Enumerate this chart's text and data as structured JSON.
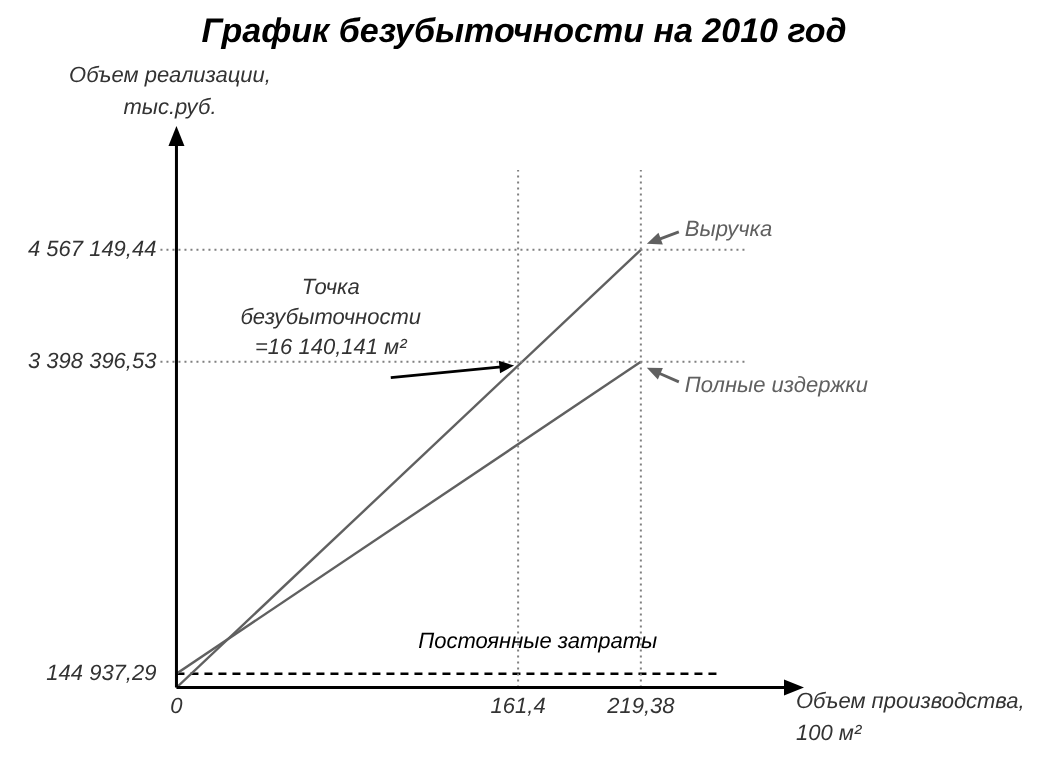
{
  "chart_data": {
    "type": "line",
    "title": "График безубыточности на 2010 год",
    "ylabel": "Объем реализации, тыс.руб.",
    "xlabel": "Объем производства, 100 м²",
    "xlim": [
      0,
      270
    ],
    "ylim": [
      0,
      5400000
    ],
    "xticks": [
      {
        "value": 0,
        "label": "0"
      },
      {
        "value": 161.4,
        "label": "161,4"
      },
      {
        "value": 219.38,
        "label": "219,38"
      }
    ],
    "yticks": [
      {
        "value": 144937.29,
        "label": "144 937,29"
      },
      {
        "value": 3398396.53,
        "label": "3 398 396,53"
      },
      {
        "value": 4567149.44,
        "label": "4 567 149,44"
      }
    ],
    "series": [
      {
        "name": "Выручка",
        "color": "#606060",
        "x": [
          0,
          219.38
        ],
        "values": [
          0,
          4567149.44
        ]
      },
      {
        "name": "Полные издержки",
        "color": "#606060",
        "x": [
          0,
          219.38
        ],
        "values": [
          144937.29,
          3398396.53
        ]
      },
      {
        "name": "Постоянные затраты",
        "color": "#000000",
        "x": [
          0,
          256
        ],
        "values": [
          144937.29,
          144937.29
        ],
        "line_style": "dashed"
      }
    ],
    "ref_lines": [
      {
        "axis": "x",
        "value": 161.4,
        "color": "#808080",
        "line_style": "dotted"
      },
      {
        "axis": "x",
        "value": 219.38,
        "color": "#808080",
        "line_style": "dotted"
      },
      {
        "axis": "y",
        "value": 4567149.44,
        "color": "#808080",
        "line_style": "dotted"
      },
      {
        "axis": "y",
        "value": 3398396.53,
        "color": "#808080",
        "line_style": "dotted"
      }
    ],
    "annotations": [
      {
        "text": "Точка безубыточности =16 140,141 м²",
        "x": 161.4,
        "y": 3360000
      }
    ],
    "grid": false,
    "legend": "right",
    "marker": "none"
  }
}
